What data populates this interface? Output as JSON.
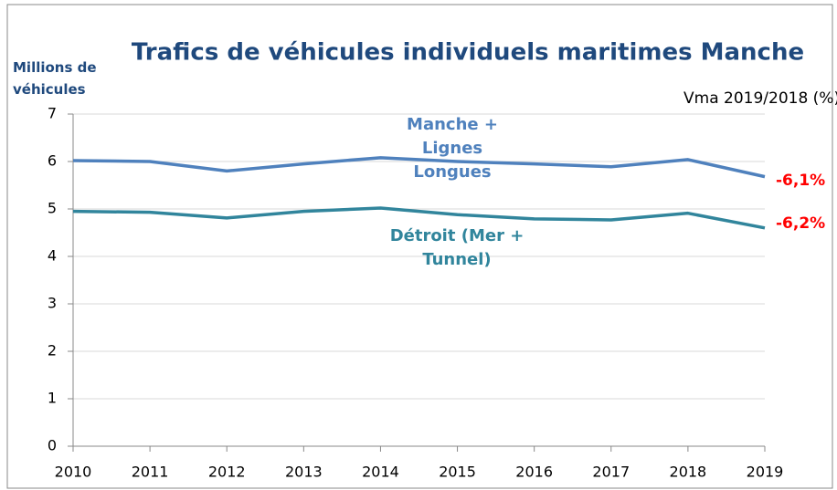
{
  "chart_data": {
    "type": "line",
    "title": "Trafics de véhicules individuels maritimes Manche",
    "y_axis_label": "Millions de véhicules",
    "annotations": [
      "Vma 2019/2018 (%)",
      "-6,1%",
      "-6,2%"
    ],
    "categories": [
      "2010",
      "2011",
      "2012",
      "2013",
      "2014",
      "2015",
      "2016",
      "2017",
      "2018",
      "2019"
    ],
    "series": [
      {
        "name": "Manche + Lignes Longues",
        "color": "#4f81bd",
        "values": [
          6.02,
          6.0,
          5.8,
          5.95,
          6.08,
          6.0,
          5.95,
          5.89,
          6.04,
          5.68
        ]
      },
      {
        "name": "Détroit (Mer + Tunnel)",
        "color": "#31859c",
        "values": [
          4.95,
          4.93,
          4.81,
          4.95,
          5.02,
          4.88,
          4.79,
          4.77,
          4.91,
          4.6
        ]
      }
    ],
    "ylim": [
      0,
      7
    ],
    "yticks": [
      0,
      1,
      2,
      3,
      4,
      5,
      6,
      7
    ],
    "grid": true
  }
}
